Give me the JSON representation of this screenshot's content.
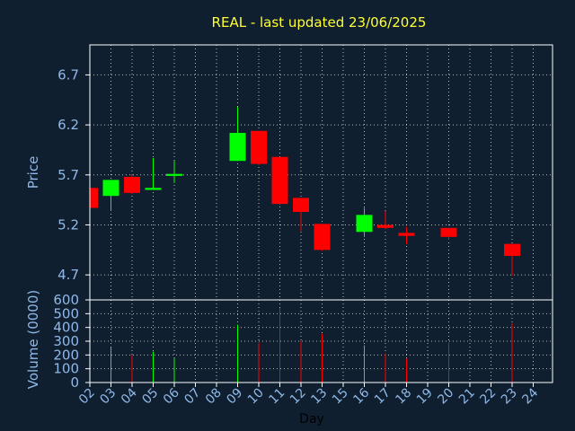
{
  "chart_data": {
    "type": "candlestick",
    "title": "REAL - last updated 23/06/2025",
    "xlabel": "Day",
    "price_panel": {
      "ylabel": "Price",
      "ylim": [
        4.45,
        7.0
      ],
      "yticks": [
        "4.7",
        "5.2",
        "5.7",
        "6.2",
        "6.7"
      ],
      "ytick_values": [
        4.7,
        5.2,
        5.7,
        6.2,
        6.7
      ],
      "grid": true
    },
    "volume_panel": {
      "ylabel": "Volume (0000)",
      "ylim": [
        0,
        600
      ],
      "yticks": [
        "0",
        "100",
        "200",
        "300",
        "400",
        "500",
        "600"
      ],
      "ytick_values": [
        0,
        100,
        200,
        300,
        400,
        500,
        600
      ],
      "grid": true
    },
    "x_ticks": [
      "02",
      "03",
      "04",
      "05",
      "06",
      "07",
      "08",
      "09",
      "10",
      "11",
      "12",
      "13",
      "15",
      "16",
      "17",
      "18",
      "19",
      "20",
      "21",
      "22",
      "23",
      "24"
    ],
    "colors": {
      "up": "#00ff00",
      "down": "#ff0000",
      "background": "#0f1f2f",
      "grid": "#ffffff",
      "axis_text": "#90b8e8",
      "title": "#ffff33"
    },
    "candles": [
      {
        "day": "02",
        "open": 5.57,
        "high": 5.57,
        "low": 5.37,
        "close": 5.37,
        "volume": 0
      },
      {
        "day": "03",
        "open": 5.49,
        "high": 5.65,
        "low": 5.34,
        "close": 5.65,
        "volume": 255
      },
      {
        "day": "04",
        "open": 5.68,
        "high": 5.7,
        "low": 5.51,
        "close": 5.52,
        "volume": 200
      },
      {
        "day": "05",
        "open": 5.55,
        "high": 5.87,
        "low": 5.55,
        "close": 5.57,
        "volume": 225
      },
      {
        "day": "06",
        "open": 5.69,
        "high": 5.84,
        "low": 5.62,
        "close": 5.71,
        "volume": 175
      },
      {
        "day": "09",
        "open": 5.84,
        "high": 6.38,
        "low": 5.84,
        "close": 6.12,
        "volume": 420
      },
      {
        "day": "10",
        "open": 6.14,
        "high": 6.14,
        "low": 5.8,
        "close": 5.81,
        "volume": 290
      },
      {
        "day": "11",
        "open": 5.88,
        "high": 5.88,
        "low": 5.4,
        "close": 5.41,
        "volume": 540
      },
      {
        "day": "12",
        "open": 5.47,
        "high": 5.47,
        "low": 5.14,
        "close": 5.33,
        "volume": 300
      },
      {
        "day": "13",
        "open": 5.21,
        "high": 5.21,
        "low": 4.94,
        "close": 4.95,
        "volume": 355
      },
      {
        "day": "16",
        "open": 5.13,
        "high": 5.37,
        "low": 5.08,
        "close": 5.3,
        "volume": 270
      },
      {
        "day": "17",
        "open": 5.2,
        "high": 5.34,
        "low": 5.16,
        "close": 5.17,
        "volume": 210
      },
      {
        "day": "18",
        "open": 5.12,
        "high": 5.18,
        "low": 5.01,
        "close": 5.09,
        "volume": 175
      },
      {
        "day": "20",
        "open": 5.17,
        "high": 5.17,
        "low": 5.05,
        "close": 5.08,
        "volume": 290
      },
      {
        "day": "23",
        "open": 5.01,
        "high": 5.01,
        "low": 4.69,
        "close": 4.89,
        "volume": 430
      }
    ]
  }
}
